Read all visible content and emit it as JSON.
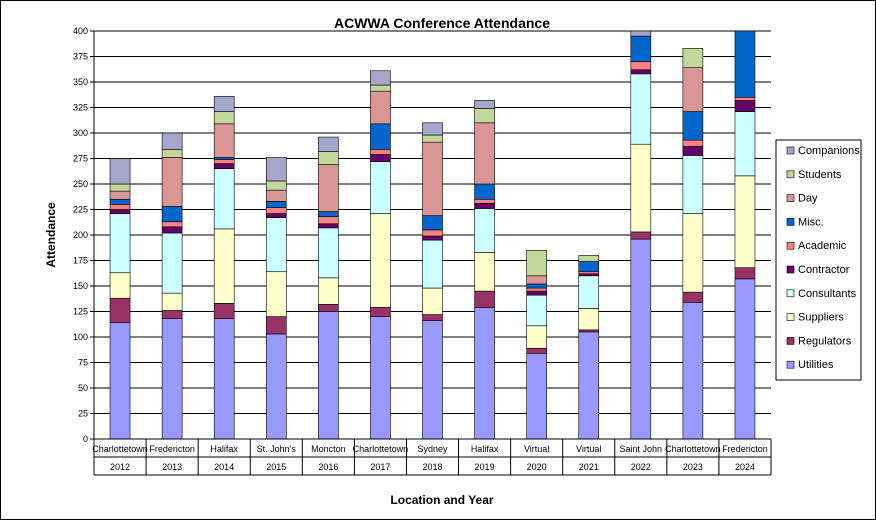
{
  "chart_data": {
    "type": "bar",
    "stacked": true,
    "title": "ACWWA Conference Attendance",
    "xlabel": "Location and Year",
    "ylabel": "Attendance",
    "ylim": [
      0,
      400
    ],
    "ytick_step": 25,
    "grid": true,
    "legend_position": "right",
    "categories": [
      {
        "location": "Charlottetown",
        "year": "2012"
      },
      {
        "location": "Fredericton",
        "year": "2013"
      },
      {
        "location": "Halifax",
        "year": "2014"
      },
      {
        "location": "St. John's",
        "year": "2015"
      },
      {
        "location": "Moncton",
        "year": "2016"
      },
      {
        "location": "Charlottetown",
        "year": "2017"
      },
      {
        "location": "Sydney",
        "year": "2018"
      },
      {
        "location": "Halifax",
        "year": "2019"
      },
      {
        "location": "Virtual",
        "year": "2020"
      },
      {
        "location": "Virtual",
        "year": "2021"
      },
      {
        "location": "Saint John",
        "year": "2022"
      },
      {
        "location": "Charlottetown",
        "year": "2023"
      },
      {
        "location": "Fredericton",
        "year": "2024"
      }
    ],
    "series": [
      {
        "name": "Utilities",
        "color": "#9999FF",
        "values": [
          114,
          118,
          118,
          103,
          125,
          120,
          116,
          129,
          84,
          105,
          196,
          134,
          157
        ]
      },
      {
        "name": "Regulators",
        "color": "#993366",
        "values": [
          24,
          8,
          15,
          17,
          7,
          9,
          6,
          16,
          5,
          2,
          7,
          10,
          11
        ]
      },
      {
        "name": "Suppliers",
        "color": "#FFFFCC",
        "values": [
          25,
          17,
          73,
          44,
          26,
          92,
          26,
          38,
          22,
          21,
          86,
          77,
          90
        ]
      },
      {
        "name": "Consultants",
        "color": "#CCFFFF",
        "values": [
          58,
          59,
          59,
          53,
          49,
          51,
          47,
          43,
          30,
          32,
          69,
          57,
          63
        ]
      },
      {
        "name": "Contractor",
        "color": "#660066",
        "values": [
          4,
          6,
          5,
          4,
          4,
          7,
          4,
          5,
          4,
          2,
          4,
          9,
          11
        ]
      },
      {
        "name": "Academic",
        "color": "#FF8080",
        "values": [
          5,
          5,
          4,
          6,
          7,
          5,
          6,
          4,
          3,
          2,
          8,
          6,
          3
        ]
      },
      {
        "name": "Misc.",
        "color": "#0066CC",
        "values": [
          5,
          15,
          2,
          6,
          5,
          25,
          14,
          15,
          4,
          10,
          25,
          28,
          65
        ]
      },
      {
        "name": "Day",
        "color": "#D99694",
        "values": [
          8,
          48,
          33,
          11,
          46,
          32,
          72,
          60,
          8,
          0,
          0,
          43,
          0
        ]
      },
      {
        "name": "Students",
        "color": "#C3D69B",
        "values": [
          7,
          8,
          12,
          9,
          13,
          6,
          7,
          14,
          25,
          6,
          0,
          19,
          0
        ]
      },
      {
        "name": "Companions",
        "color": "#A6A6CA",
        "values": [
          25,
          16,
          15,
          23,
          14,
          14,
          12,
          8,
          0,
          0,
          10,
          0,
          0
        ]
      }
    ]
  }
}
